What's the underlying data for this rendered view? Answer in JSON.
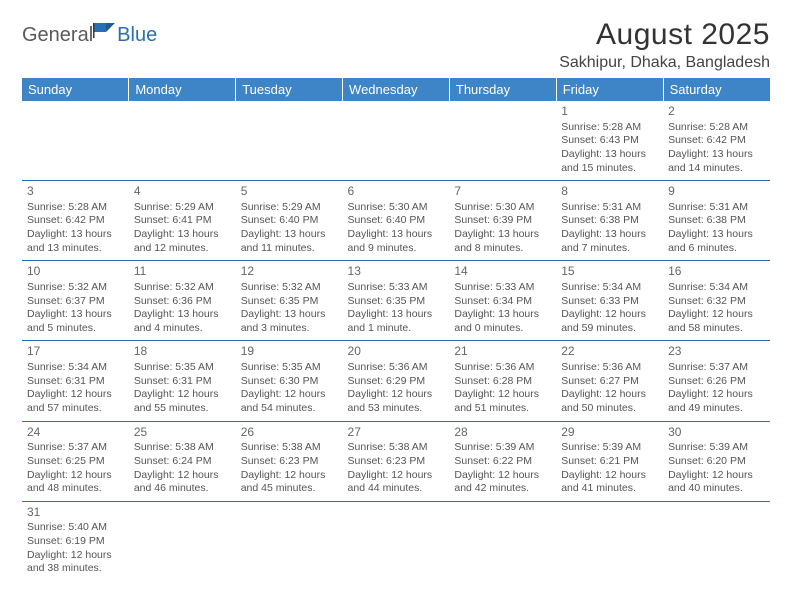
{
  "brand": {
    "part1": "General",
    "part2": "Blue"
  },
  "title": "August 2025",
  "location": "Sakhipur, Dhaka, Bangladesh",
  "colors": {
    "header_bg": "#3d85c6",
    "header_text": "#ffffff",
    "border": "#2a6fb5",
    "brand_gray": "#5a5a5a",
    "brand_blue": "#2a6fb5"
  },
  "weekdays": [
    "Sunday",
    "Monday",
    "Tuesday",
    "Wednesday",
    "Thursday",
    "Friday",
    "Saturday"
  ],
  "weeks": [
    [
      null,
      null,
      null,
      null,
      null,
      {
        "n": "1",
        "sr": "Sunrise: 5:28 AM",
        "ss": "Sunset: 6:43 PM",
        "dl": "Daylight: 13 hours and 15 minutes."
      },
      {
        "n": "2",
        "sr": "Sunrise: 5:28 AM",
        "ss": "Sunset: 6:42 PM",
        "dl": "Daylight: 13 hours and 14 minutes."
      }
    ],
    [
      {
        "n": "3",
        "sr": "Sunrise: 5:28 AM",
        "ss": "Sunset: 6:42 PM",
        "dl": "Daylight: 13 hours and 13 minutes."
      },
      {
        "n": "4",
        "sr": "Sunrise: 5:29 AM",
        "ss": "Sunset: 6:41 PM",
        "dl": "Daylight: 13 hours and 12 minutes."
      },
      {
        "n": "5",
        "sr": "Sunrise: 5:29 AM",
        "ss": "Sunset: 6:40 PM",
        "dl": "Daylight: 13 hours and 11 minutes."
      },
      {
        "n": "6",
        "sr": "Sunrise: 5:30 AM",
        "ss": "Sunset: 6:40 PM",
        "dl": "Daylight: 13 hours and 9 minutes."
      },
      {
        "n": "7",
        "sr": "Sunrise: 5:30 AM",
        "ss": "Sunset: 6:39 PM",
        "dl": "Daylight: 13 hours and 8 minutes."
      },
      {
        "n": "8",
        "sr": "Sunrise: 5:31 AM",
        "ss": "Sunset: 6:38 PM",
        "dl": "Daylight: 13 hours and 7 minutes."
      },
      {
        "n": "9",
        "sr": "Sunrise: 5:31 AM",
        "ss": "Sunset: 6:38 PM",
        "dl": "Daylight: 13 hours and 6 minutes."
      }
    ],
    [
      {
        "n": "10",
        "sr": "Sunrise: 5:32 AM",
        "ss": "Sunset: 6:37 PM",
        "dl": "Daylight: 13 hours and 5 minutes."
      },
      {
        "n": "11",
        "sr": "Sunrise: 5:32 AM",
        "ss": "Sunset: 6:36 PM",
        "dl": "Daylight: 13 hours and 4 minutes."
      },
      {
        "n": "12",
        "sr": "Sunrise: 5:32 AM",
        "ss": "Sunset: 6:35 PM",
        "dl": "Daylight: 13 hours and 3 minutes."
      },
      {
        "n": "13",
        "sr": "Sunrise: 5:33 AM",
        "ss": "Sunset: 6:35 PM",
        "dl": "Daylight: 13 hours and 1 minute."
      },
      {
        "n": "14",
        "sr": "Sunrise: 5:33 AM",
        "ss": "Sunset: 6:34 PM",
        "dl": "Daylight: 13 hours and 0 minutes."
      },
      {
        "n": "15",
        "sr": "Sunrise: 5:34 AM",
        "ss": "Sunset: 6:33 PM",
        "dl": "Daylight: 12 hours and 59 minutes."
      },
      {
        "n": "16",
        "sr": "Sunrise: 5:34 AM",
        "ss": "Sunset: 6:32 PM",
        "dl": "Daylight: 12 hours and 58 minutes."
      }
    ],
    [
      {
        "n": "17",
        "sr": "Sunrise: 5:34 AM",
        "ss": "Sunset: 6:31 PM",
        "dl": "Daylight: 12 hours and 57 minutes."
      },
      {
        "n": "18",
        "sr": "Sunrise: 5:35 AM",
        "ss": "Sunset: 6:31 PM",
        "dl": "Daylight: 12 hours and 55 minutes."
      },
      {
        "n": "19",
        "sr": "Sunrise: 5:35 AM",
        "ss": "Sunset: 6:30 PM",
        "dl": "Daylight: 12 hours and 54 minutes."
      },
      {
        "n": "20",
        "sr": "Sunrise: 5:36 AM",
        "ss": "Sunset: 6:29 PM",
        "dl": "Daylight: 12 hours and 53 minutes."
      },
      {
        "n": "21",
        "sr": "Sunrise: 5:36 AM",
        "ss": "Sunset: 6:28 PM",
        "dl": "Daylight: 12 hours and 51 minutes."
      },
      {
        "n": "22",
        "sr": "Sunrise: 5:36 AM",
        "ss": "Sunset: 6:27 PM",
        "dl": "Daylight: 12 hours and 50 minutes."
      },
      {
        "n": "23",
        "sr": "Sunrise: 5:37 AM",
        "ss": "Sunset: 6:26 PM",
        "dl": "Daylight: 12 hours and 49 minutes."
      }
    ],
    [
      {
        "n": "24",
        "sr": "Sunrise: 5:37 AM",
        "ss": "Sunset: 6:25 PM",
        "dl": "Daylight: 12 hours and 48 minutes."
      },
      {
        "n": "25",
        "sr": "Sunrise: 5:38 AM",
        "ss": "Sunset: 6:24 PM",
        "dl": "Daylight: 12 hours and 46 minutes."
      },
      {
        "n": "26",
        "sr": "Sunrise: 5:38 AM",
        "ss": "Sunset: 6:23 PM",
        "dl": "Daylight: 12 hours and 45 minutes."
      },
      {
        "n": "27",
        "sr": "Sunrise: 5:38 AM",
        "ss": "Sunset: 6:23 PM",
        "dl": "Daylight: 12 hours and 44 minutes."
      },
      {
        "n": "28",
        "sr": "Sunrise: 5:39 AM",
        "ss": "Sunset: 6:22 PM",
        "dl": "Daylight: 12 hours and 42 minutes."
      },
      {
        "n": "29",
        "sr": "Sunrise: 5:39 AM",
        "ss": "Sunset: 6:21 PM",
        "dl": "Daylight: 12 hours and 41 minutes."
      },
      {
        "n": "30",
        "sr": "Sunrise: 5:39 AM",
        "ss": "Sunset: 6:20 PM",
        "dl": "Daylight: 12 hours and 40 minutes."
      }
    ],
    [
      {
        "n": "31",
        "sr": "Sunrise: 5:40 AM",
        "ss": "Sunset: 6:19 PM",
        "dl": "Daylight: 12 hours and 38 minutes."
      },
      null,
      null,
      null,
      null,
      null,
      null
    ]
  ]
}
